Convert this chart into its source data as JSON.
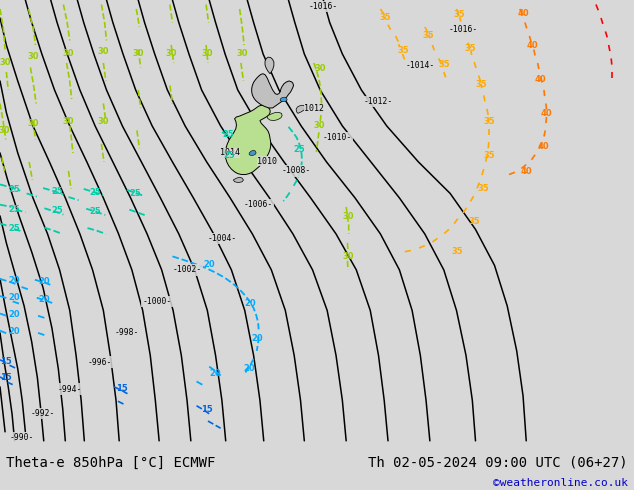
{
  "title_left": "Theta-e 850hPa [°C] ECMWF",
  "title_right": "Th 02-05-2024 09:00 UTC (06+27)",
  "title_right2": "©weatheronline.co.uk",
  "bg_color": "#d8d8d8",
  "bottom_bar_color": "#d8d8d8",
  "title_left_color": "#000000",
  "title_right_color": "#000000",
  "watermark_color": "#0000cc",
  "pc": "#000000",
  "c30": "#99cc00",
  "c25": "#00ccaa",
  "c20": "#00aaff",
  "c15": "#0066dd",
  "c35": "#ffaa00",
  "c40": "#ff7700",
  "cred": "#ff0000",
  "nz_north_color": "#c0c0c0",
  "nz_south_color": "#b8e090",
  "nz_lake_color": "#4499cc",
  "bottom_bar_height": 0.082,
  "font_size_title": 10,
  "font_size_watermark": 8
}
